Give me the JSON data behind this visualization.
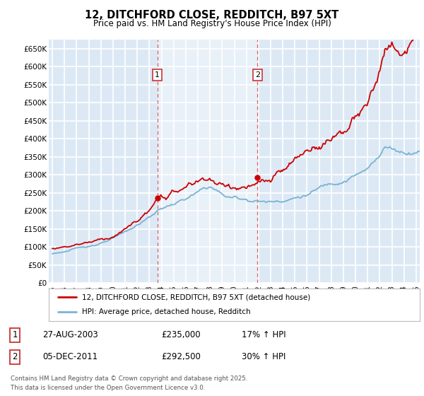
{
  "title": "12, DITCHFORD CLOSE, REDDITCH, B97 5XT",
  "subtitle": "Price paid vs. HM Land Registry's House Price Index (HPI)",
  "ylabel_ticks": [
    "£0",
    "£50K",
    "£100K",
    "£150K",
    "£200K",
    "£250K",
    "£300K",
    "£350K",
    "£400K",
    "£450K",
    "£500K",
    "£550K",
    "£600K",
    "£650K"
  ],
  "ytick_values": [
    0,
    50000,
    100000,
    150000,
    200000,
    250000,
    300000,
    350000,
    400000,
    450000,
    500000,
    550000,
    600000,
    650000
  ],
  "ylim": [
    0,
    675000
  ],
  "xlim_start": 1994.7,
  "xlim_end": 2025.3,
  "xticks": [
    1995,
    1996,
    1997,
    1998,
    1999,
    2000,
    2001,
    2002,
    2003,
    2004,
    2005,
    2006,
    2007,
    2008,
    2009,
    2010,
    2011,
    2012,
    2013,
    2014,
    2015,
    2016,
    2017,
    2018,
    2019,
    2020,
    2021,
    2022,
    2023,
    2024,
    2025
  ],
  "background_color": "#dce9f5",
  "shade_bg_color": "#e8f0f8",
  "grid_color": "#ffffff",
  "house_color": "#cc0000",
  "hpi_color": "#7ab3d4",
  "transaction1_x": 2003.65,
  "transaction1_y": 235000,
  "transaction2_x": 2011.92,
  "transaction2_y": 292500,
  "legend_house": "12, DITCHFORD CLOSE, REDDITCH, B97 5XT (detached house)",
  "legend_hpi": "HPI: Average price, detached house, Redditch",
  "annotation1_date": "27-AUG-2003",
  "annotation1_price": "£235,000",
  "annotation1_hpi": "17% ↑ HPI",
  "annotation2_date": "05-DEC-2011",
  "annotation2_price": "£292,500",
  "annotation2_hpi": "30% ↑ HPI",
  "footer": "Contains HM Land Registry data © Crown copyright and database right 2025.\nThis data is licensed under the Open Government Licence v3.0.",
  "vline_color": "#e06060",
  "fig_bg": "#ffffff"
}
